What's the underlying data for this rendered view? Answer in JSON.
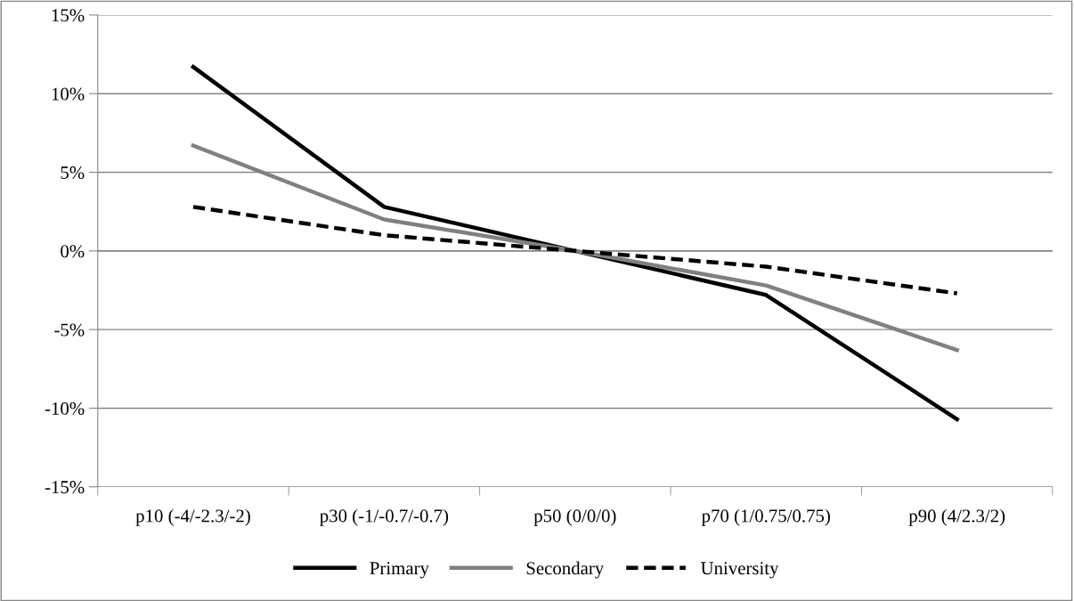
{
  "chart_data": {
    "type": "line",
    "categories": [
      "p10 (-4/-2.3/-2)",
      "p30 (-1/-0.7/-0.7)",
      "p50 (0/0/0)",
      "p70 (1/0.75/0.75)",
      "p90 (4/2.3/2)"
    ],
    "series": [
      {
        "name": "Primary",
        "color": "#000000",
        "line_style": "solid",
        "values": [
          11.7,
          2.8,
          0,
          -2.8,
          -10.7
        ]
      },
      {
        "name": "Secondary",
        "color": "#808080",
        "line_style": "solid",
        "values": [
          6.7,
          2.0,
          0,
          -2.2,
          -6.3
        ]
      },
      {
        "name": "University",
        "color": "#000000",
        "line_style": "dashed",
        "values": [
          2.8,
          1.0,
          0,
          -1.0,
          -2.7
        ]
      }
    ],
    "ylim": [
      -15,
      15
    ],
    "yticks": [
      {
        "value": -15,
        "label": "-15%"
      },
      {
        "value": -10,
        "label": "-10%"
      },
      {
        "value": -5,
        "label": "-5%"
      },
      {
        "value": 0,
        "label": "0%"
      },
      {
        "value": 5,
        "label": "5%"
      },
      {
        "value": 10,
        "label": "10%"
      },
      {
        "value": 15,
        "label": "15%"
      }
    ],
    "grid": "y",
    "legend": "bottom",
    "marker": "none"
  }
}
